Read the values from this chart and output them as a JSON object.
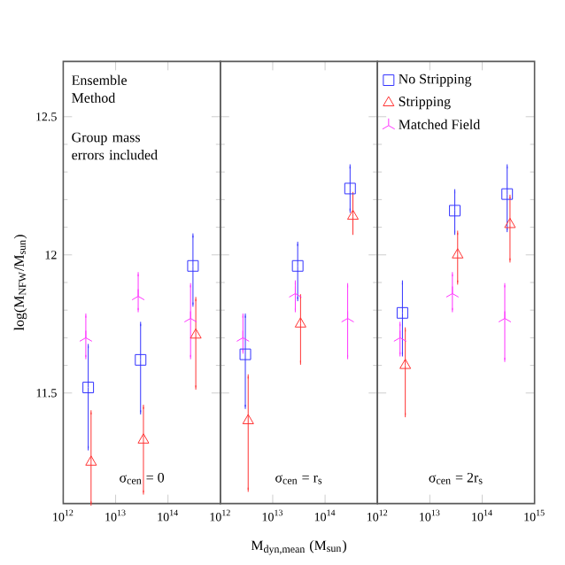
{
  "chart_data": [
    {
      "type": "scatter",
      "ylabel": "log(M$_{NFW}$/M$_{sun}$)",
      "log": "x",
      "xlim": [
        1000000000000,
        1000000000000000
      ],
      "ylim": [
        11.1,
        12.7
      ],
      "xticks": [
        {
          "value": 1000000000000,
          "label": "10$^{12}$"
        },
        {
          "value": 10000000000000,
          "label": "10$^{13}$"
        },
        {
          "value": 100000000000000,
          "label": "10$^{14}$"
        },
        {
          "value": 1000000000000000,
          "label": null
        }
      ],
      "yticks": [
        11.5,
        12,
        12.5
      ],
      "annotations": [
        "Ensemble Method",
        "Group mass errors included",
        "σ$_{cen}$ = 0"
      ],
      "series": [
        {
          "color": "#3333ff",
          "marker": "square",
          "x": [
            3000000000000,
            30000000000000,
            300000000000000
          ],
          "values": [
            11.52,
            11.62,
            11.96
          ],
          "errors": [
            [
              11.3,
              11.67
            ],
            [
              11.43,
              11.75
            ],
            [
              11.82,
              12.07
            ]
          ]
        },
        {
          "color": "#ff3333",
          "marker": "triangle",
          "x": [
            3400000000000,
            34000000000000,
            340000000000000
          ],
          "values": [
            11.25,
            11.33,
            11.71
          ],
          "errors": [
            [
              11.1,
              11.43
            ],
            [
              11.14,
              11.45
            ],
            [
              11.52,
              11.84
            ]
          ]
        },
        {
          "color": "#ff33ff",
          "marker": "cross",
          "x": [
            2700000000000,
            27000000000000,
            270000000000000
          ],
          "values": [
            11.7,
            11.85,
            11.77
          ],
          "errors": [
            [
              11.63,
              11.78
            ],
            [
              11.8,
              11.93
            ],
            [
              11.63,
              11.89
            ]
          ]
        }
      ]
    },
    {
      "type": "scatter",
      "xlabel": "M$_{dyn,mean}$ (M$_{sun}$)",
      "log": "x",
      "tick_labels": "x",
      "xlim": [
        1000000000000,
        1000000000000000
      ],
      "ylim": [
        11.1,
        12.7
      ],
      "xticks": [
        {
          "value": 1000000000000,
          "label": "10$^{12}$"
        },
        {
          "value": 10000000000000,
          "label": "10$^{13}$"
        },
        {
          "value": 100000000000000,
          "label": "10$^{14}$"
        },
        {
          "value": 1000000000000000,
          "label": null
        }
      ],
      "yticks": [
        11.5,
        12,
        12.5
      ],
      "annotations": [
        "σ$_{cen}$ = r$_{s}$"
      ],
      "series": [
        {
          "color": "#3333ff",
          "marker": "square",
          "x": [
            3000000000000,
            30000000000000,
            300000000000000
          ],
          "values": [
            11.64,
            11.96,
            12.24
          ],
          "errors": [
            [
              11.45,
              11.78
            ],
            [
              11.84,
              12.04
            ],
            [
              12.16,
              12.32
            ]
          ]
        },
        {
          "color": "#ff3333",
          "marker": "triangle",
          "x": [
            3400000000000,
            34000000000000,
            340000000000000
          ],
          "values": [
            11.4,
            11.75,
            12.14
          ],
          "errors": [
            [
              11.15,
              11.56
            ],
            [
              11.61,
              11.85
            ],
            [
              12.08,
              12.22
            ]
          ]
        },
        {
          "color": "#ff33ff",
          "marker": "cross",
          "x": [
            2700000000000,
            27000000000000,
            270000000000000
          ],
          "values": [
            11.7,
            11.86,
            11.77
          ],
          "errors": [
            [
              11.65,
              11.78
            ],
            [
              11.8,
              11.9
            ],
            [
              11.63,
              11.89
            ]
          ]
        }
      ]
    },
    {
      "type": "scatter",
      "log": "x",
      "tick_labels": "x",
      "legend": "top left",
      "xlim": [
        1000000000000,
        1000000000000000
      ],
      "ylim": [
        11.1,
        12.7
      ],
      "xticks": [
        {
          "value": 1000000000000,
          "label": "10$^{12}$"
        },
        {
          "value": 10000000000000,
          "label": "10$^{13}$"
        },
        {
          "value": 100000000000000,
          "label": "10$^{14}$"
        },
        {
          "value": 1000000000000000,
          "label": "10$^{15}$"
        }
      ],
      "yticks": [
        11.5,
        12,
        12.5
      ],
      "annotations": [
        "σ$_{cen}$ = 2r$_{s}$"
      ],
      "series": [
        {
          "name": "No Stripping",
          "color": "#3333ff",
          "marker": "square",
          "x": [
            3000000000000,
            30000000000000,
            300000000000000
          ],
          "values": [
            11.79,
            12.16,
            12.22
          ],
          "errors": [
            [
              11.64,
              11.9
            ],
            [
              12.08,
              12.23
            ],
            [
              12.09,
              12.32
            ]
          ]
        },
        {
          "name": "Stripping",
          "color": "#ff3333",
          "marker": "triangle",
          "x": [
            3400000000000,
            34000000000000,
            340000000000000
          ],
          "values": [
            11.6,
            12.0,
            12.11
          ],
          "errors": [
            [
              11.42,
              11.73
            ],
            [
              11.9,
              12.08
            ],
            [
              11.98,
              12.21
            ]
          ]
        },
        {
          "name": "Matched Field",
          "color": "#ff33ff",
          "marker": "cross",
          "x": [
            2700000000000,
            27000000000000,
            270000000000000
          ],
          "values": [
            11.7,
            11.86,
            11.77
          ],
          "errors": [
            [
              11.64,
              11.75
            ],
            [
              11.8,
              11.93
            ],
            [
              11.62,
              11.89
            ]
          ]
        }
      ]
    }
  ]
}
